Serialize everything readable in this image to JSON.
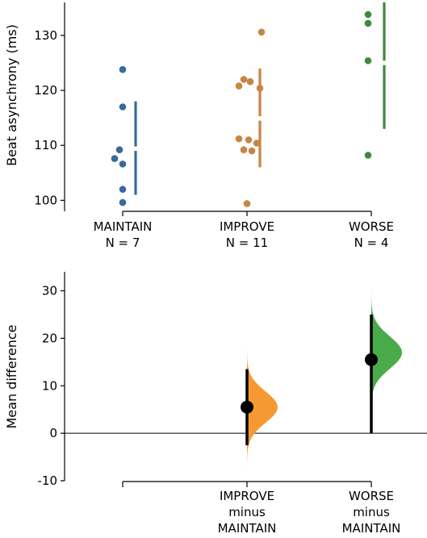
{
  "chart_data": [
    {
      "type": "scatter",
      "ylabel": "Beat asynchrony (ms)",
      "ylim": [
        98,
        136
      ],
      "yticks": [
        100,
        110,
        120,
        130
      ],
      "categories": [
        {
          "label_line1": "MAINTAIN",
          "label_line2": "N = 7",
          "color": "#3a6a96",
          "points": [
            123.8,
            117.0,
            109.2,
            107.6,
            106.6,
            102.0,
            99.6
          ],
          "summary": {
            "low": 101.0,
            "gap_low": 109.0,
            "gap_high": 109.8,
            "high": 118.0
          }
        },
        {
          "label_line1": "IMPROVE",
          "label_line2": "N = 11",
          "color": "#c68645",
          "points": [
            130.6,
            122.0,
            121.6,
            120.8,
            120.4,
            111.2,
            111.0,
            110.4,
            109.2,
            109.0,
            99.4
          ],
          "summary": {
            "low": 106.0,
            "gap_low": 114.5,
            "gap_high": 115.3,
            "high": 124.0
          }
        },
        {
          "label_line1": "WORSE",
          "label_line2": "N = 4",
          "color": "#3e8a3e",
          "points": [
            133.8,
            132.2,
            125.4,
            108.2
          ],
          "summary": {
            "low": 113.0,
            "gap_low": 124.6,
            "gap_high": 125.4,
            "high": 136.0
          }
        }
      ]
    },
    {
      "type": "area",
      "ylabel": "Mean difference",
      "ylim": [
        -10,
        34
      ],
      "yticks": [
        -10,
        0,
        10,
        20,
        30
      ],
      "categories": [
        {
          "label_lines": [
            "",
            "",
            ""
          ]
        },
        {
          "label_lines": [
            "IMPROVE",
            "minus",
            "MAINTAIN"
          ],
          "mean": 5.5,
          "ci": [
            -2.5,
            13.5
          ],
          "dist": {
            "min": -7.5,
            "max": 19.5,
            "peak": 5.5,
            "sd": 3.3
          },
          "color": "#f59a32"
        },
        {
          "label_lines": [
            "WORSE",
            "minus",
            "MAINTAIN"
          ],
          "mean": 15.5,
          "ci": [
            0,
            25
          ],
          "dist": {
            "min": 5.0,
            "max": 31.5,
            "peak": 17.0,
            "sd": 3.4
          },
          "color": "#4aab4a"
        }
      ]
    }
  ]
}
